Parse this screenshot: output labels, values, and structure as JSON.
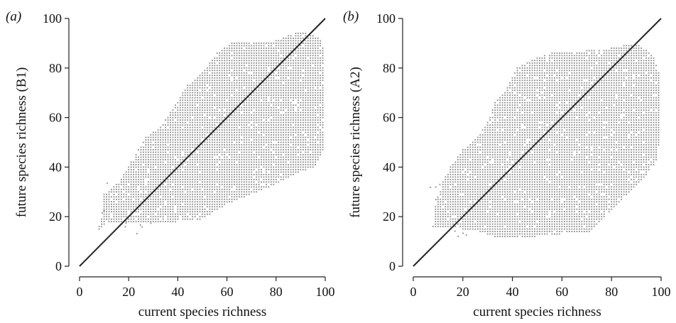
{
  "figure": {
    "panels_count": 2
  },
  "chart_data": [
    {
      "type": "scatter",
      "panel_label": "(a)",
      "xlabel": "current species richness",
      "ylabel": "future species richness (B1)",
      "xlim": [
        0,
        100
      ],
      "ylim": [
        0,
        100
      ],
      "xticks": [
        0,
        20,
        40,
        60,
        80,
        100
      ],
      "yticks": [
        0,
        20,
        40,
        60,
        80,
        100
      ],
      "grid": false,
      "point_color": "#8a8a8a",
      "line_color": "#222222",
      "reference_line": {
        "from": [
          0,
          0
        ],
        "to": [
          100,
          100
        ]
      },
      "cloud_envelope": [
        [
          7,
          13
        ],
        [
          10,
          22
        ],
        [
          10,
          29
        ],
        [
          13,
          31
        ],
        [
          18,
          37
        ],
        [
          24,
          47
        ],
        [
          27,
          52
        ],
        [
          33,
          56
        ],
        [
          40,
          67
        ],
        [
          44,
          73
        ],
        [
          50,
          78
        ],
        [
          56,
          86
        ],
        [
          62,
          90
        ],
        [
          80,
          91
        ],
        [
          90,
          95
        ],
        [
          98,
          92
        ],
        [
          100,
          85
        ],
        [
          100,
          48
        ],
        [
          96,
          40
        ],
        [
          90,
          38
        ],
        [
          80,
          33
        ],
        [
          70,
          29
        ],
        [
          60,
          25
        ],
        [
          55,
          22
        ],
        [
          50,
          19
        ],
        [
          40,
          18
        ],
        [
          30,
          18
        ],
        [
          20,
          18
        ],
        [
          12,
          18
        ]
      ]
    },
    {
      "type": "scatter",
      "panel_label": "(b)",
      "xlabel": "current species richness",
      "ylabel": "future species richness (A2)",
      "xlim": [
        0,
        100
      ],
      "ylim": [
        0,
        100
      ],
      "xticks": [
        0,
        20,
        40,
        60,
        80,
        100
      ],
      "yticks": [
        0,
        20,
        40,
        60,
        80,
        100
      ],
      "grid": false,
      "point_color": "#8a8a8a",
      "line_color": "#222222",
      "reference_line": {
        "from": [
          0,
          0
        ],
        "to": [
          100,
          100
        ]
      },
      "cloud_envelope": [
        [
          8,
          16
        ],
        [
          9,
          24
        ],
        [
          12,
          34
        ],
        [
          15,
          40
        ],
        [
          20,
          47
        ],
        [
          26,
          52
        ],
        [
          30,
          58
        ],
        [
          32,
          65
        ],
        [
          38,
          72
        ],
        [
          42,
          80
        ],
        [
          50,
          84
        ],
        [
          58,
          87
        ],
        [
          70,
          87
        ],
        [
          80,
          88
        ],
        [
          90,
          90
        ],
        [
          97,
          85
        ],
        [
          100,
          76
        ],
        [
          100,
          55
        ],
        [
          98,
          42
        ],
        [
          92,
          34
        ],
        [
          85,
          28
        ],
        [
          78,
          20
        ],
        [
          72,
          14
        ],
        [
          60,
          13
        ],
        [
          50,
          12
        ],
        [
          40,
          12
        ],
        [
          33,
          12
        ],
        [
          27,
          14
        ],
        [
          20,
          15
        ],
        [
          12,
          16
        ]
      ]
    }
  ]
}
